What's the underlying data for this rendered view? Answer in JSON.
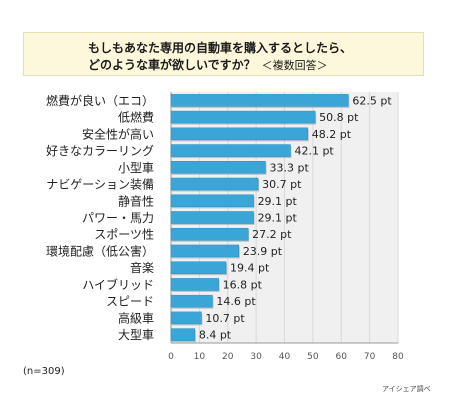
{
  "header": {
    "title_line1": "もしもあなた専用の自動車を購入するとしたら、",
    "title_line2": "どのような車が欲しいですか？",
    "title_note": "＜複数回答＞"
  },
  "sample_size": "(n=309)",
  "source": "アイシェア調べ",
  "value_suffix": " pt",
  "chart_data": {
    "type": "bar",
    "orientation": "horizontal",
    "title": "もしもあなた専用の自動車を購入するとしたら、どのような車が欲しいですか？ ＜複数回答＞",
    "categories": [
      "燃費が良い（エコ）",
      "低燃費",
      "安全性が高い",
      "好きなカラーリング",
      "小型車",
      "ナビゲーション装備",
      "静音性",
      "パワー・馬力",
      "スポーツ性",
      "環境配慮（低公害）",
      "音楽",
      "ハイブリッド",
      "スピード",
      "高級車",
      "大型車"
    ],
    "values": [
      62.5,
      50.8,
      48.2,
      42.1,
      33.3,
      30.7,
      29.1,
      29.1,
      27.2,
      23.9,
      19.4,
      16.8,
      14.6,
      10.7,
      8.4
    ],
    "value_labels": [
      "62.5 pt",
      "50.8 pt",
      "48.2 pt",
      "42.1 pt",
      "33.3 pt",
      "30.7 pt",
      "29.1 pt",
      "29.1 pt",
      "27.2 pt",
      "23.9 pt",
      "19.4 pt",
      "16.8 pt",
      "14.6 pt",
      "10.7 pt",
      "8.4 pt"
    ],
    "xlim": [
      0,
      80
    ],
    "xticks": [
      0,
      10,
      20,
      30,
      40,
      50,
      60,
      70,
      80
    ],
    "grid": true,
    "bar_color": "#3aa6d8",
    "plot_background": "#f0f0f0",
    "xlabel": "",
    "ylabel": ""
  }
}
